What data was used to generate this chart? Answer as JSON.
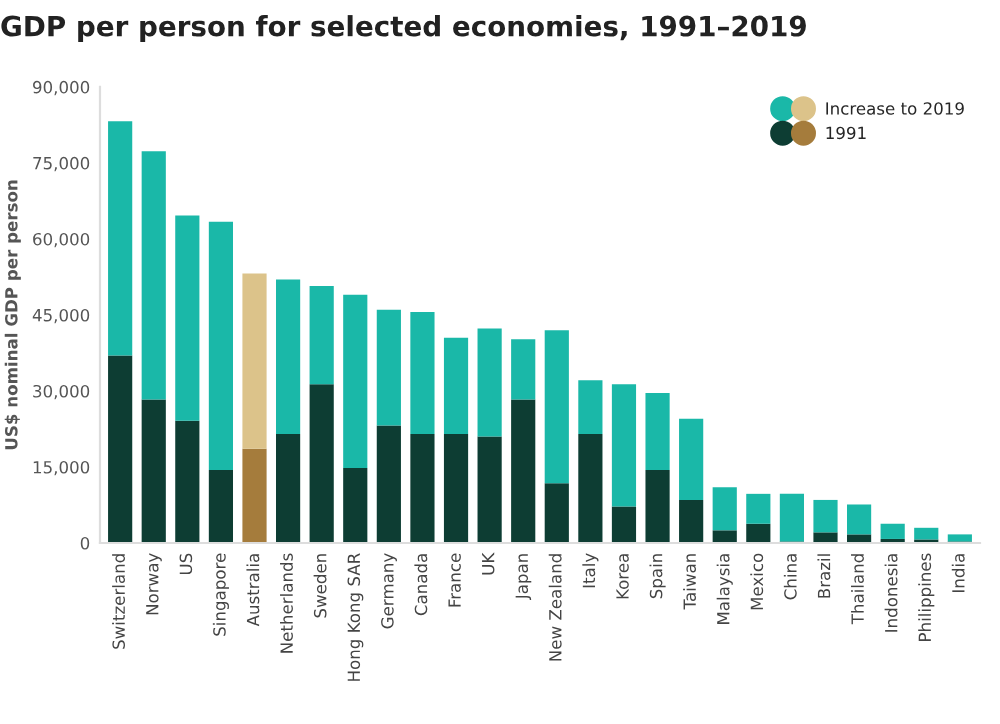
{
  "chart_data": {
    "type": "bar",
    "title": "GDP per person for selected economies, 1991–2019",
    "ylabel": "US$ nominal GDP per person",
    "categories": [
      "Switzerland",
      "Norway",
      "US",
      "Singapore",
      "Australia",
      "Netherlands",
      "Sweden",
      "Hong Kong SAR",
      "Germany",
      "Canada",
      "France",
      "UK",
      "Japan",
      "New Zealand",
      "Italy",
      "Korea",
      "Spain",
      "Taiwan",
      "Malaysia",
      "Mexico",
      "China",
      "Brazil",
      "Thailand",
      "Indonesia",
      "Philippines",
      "India"
    ],
    "stacked": true,
    "series": [
      {
        "name": "1991",
        "color": "#0d3d33",
        "colors": [
          "#0d3d33",
          "#0d3d33",
          "#0d3d33",
          "#0d3d33",
          "#a57c3c",
          "#0d3d33",
          "#0d3d33",
          "#0d3d33",
          "#0d3d33",
          "#0d3d33",
          "#0d3d33",
          "#0d3d33",
          "#0d3d33",
          "#0d3d33",
          "#0d3d33",
          "#0d3d33",
          "#0d3d33",
          "#0d3d33",
          "#0d3d33",
          "#0d3d33",
          "#0d3d33",
          "#0d3d33",
          "#0d3d33",
          "#0d3d33",
          "#0d3d33",
          "#0d3d33"
        ],
        "values": [
          37000,
          28300,
          24100,
          14400,
          18600,
          21500,
          31300,
          14800,
          23200,
          21500,
          21500,
          21000,
          28300,
          11800,
          21500,
          7200,
          14400,
          8500,
          2500,
          3800,
          300,
          2100,
          1700,
          800,
          700,
          300
        ]
      },
      {
        "name": "Increase to 2019",
        "color": "#1ab8a8",
        "colors": [
          "#1ab8a8",
          "#1ab8a8",
          "#1ab8a8",
          "#1ab8a8",
          "#dcc38a",
          "#1ab8a8",
          "#1ab8a8",
          "#1ab8a8",
          "#1ab8a8",
          "#1ab8a8",
          "#1ab8a8",
          "#1ab8a8",
          "#1ab8a8",
          "#1ab8a8",
          "#1ab8a8",
          "#1ab8a8",
          "#1ab8a8",
          "#1ab8a8",
          "#1ab8a8",
          "#1ab8a8",
          "#1ab8a8",
          "#1ab8a8",
          "#1ab8a8",
          "#1ab8a8",
          "#1ab8a8",
          "#1ab8a8"
        ],
        "values": [
          46200,
          49000,
          40500,
          49000,
          34600,
          30500,
          19400,
          34200,
          22800,
          24100,
          19000,
          21300,
          11900,
          30200,
          10600,
          24100,
          15200,
          16000,
          8500,
          5900,
          9400,
          6400,
          5900,
          3000,
          2300,
          1400
        ]
      }
    ],
    "ylim": [
      0,
      90000
    ],
    "yticks": [
      0,
      {
        "value": 15000,
        "label": "15,000"
      },
      {
        "value": 30000,
        "label": "30,000"
      },
      {
        "value": 45000,
        "label": "45,000"
      },
      {
        "value": 60000,
        "label": "60,000"
      },
      {
        "value": 75000,
        "label": "75,000"
      },
      {
        "value": 90000,
        "label": "90,000"
      }
    ],
    "legend": "top right"
  }
}
